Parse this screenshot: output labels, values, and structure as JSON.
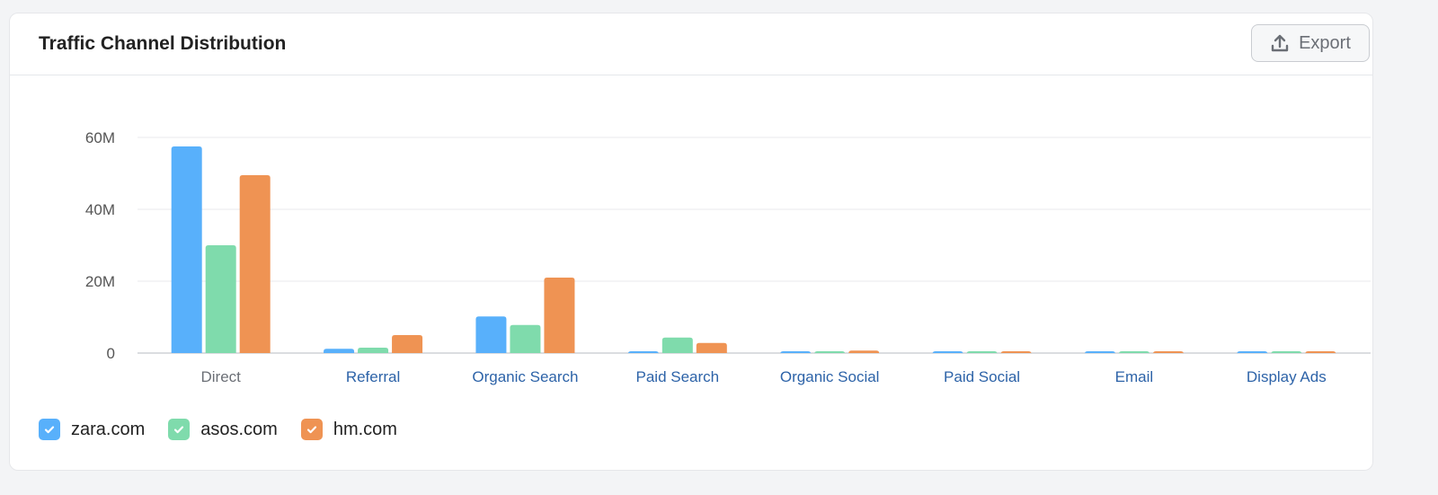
{
  "header": {
    "title": "Traffic Channel Distribution",
    "export_label": "Export",
    "export_icon": "upload-icon"
  },
  "colors": {
    "zara.com": "#58b0fb",
    "asos.com": "#7fdbac",
    "hm.com": "#ef9353",
    "category_link": "#2d63a8",
    "category_plain": "#6b6f76"
  },
  "chart_data": {
    "type": "bar",
    "title": "Traffic Channel Distribution",
    "xlabel": "",
    "ylabel": "",
    "ylim": [
      0,
      60000000
    ],
    "yticks": [
      0,
      20000000,
      40000000,
      60000000
    ],
    "ytick_labels": [
      "0",
      "20M",
      "40M",
      "60M"
    ],
    "grid": true,
    "legend_position": "bottom-left",
    "categories": [
      "Direct",
      "Referral",
      "Organic Search",
      "Paid Search",
      "Organic Social",
      "Paid Social",
      "Email",
      "Display Ads"
    ],
    "series": [
      {
        "name": "zara.com",
        "color": "#58b0fb",
        "values": [
          57500000,
          1200000,
          10200000,
          500000,
          500000,
          500000,
          500000,
          500000
        ]
      },
      {
        "name": "asos.com",
        "color": "#7fdbac",
        "values": [
          30000000,
          1500000,
          7800000,
          4300000,
          500000,
          500000,
          500000,
          500000
        ]
      },
      {
        "name": "hm.com",
        "color": "#ef9353",
        "values": [
          49500000,
          5000000,
          21000000,
          2800000,
          700000,
          500000,
          500000,
          500000
        ]
      }
    ]
  }
}
